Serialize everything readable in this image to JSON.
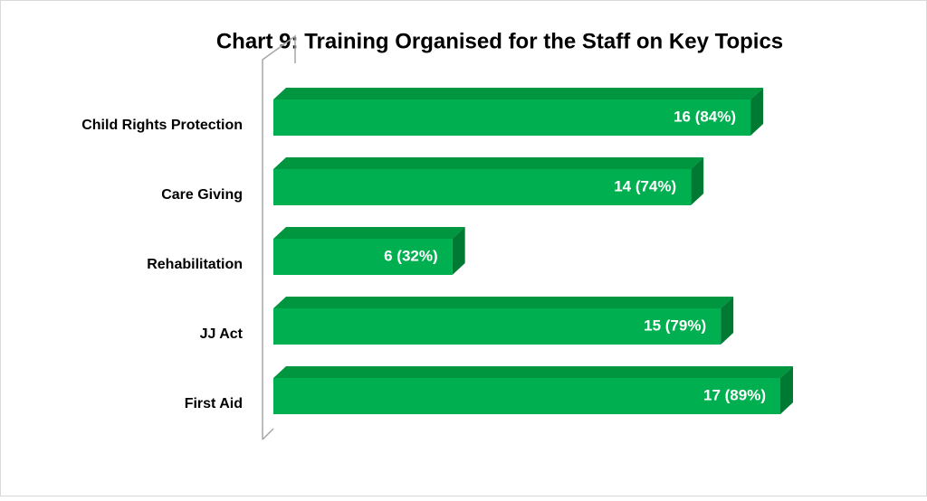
{
  "chart_data": {
    "type": "bar",
    "orientation": "horizontal",
    "title": "Chart 9: Training Organised for the Staff on Key Topics",
    "categories": [
      "Child Rights Protection",
      "Care Giving",
      "Rehabilitation",
      "JJ Act",
      "First Aid"
    ],
    "values": [
      16,
      14,
      6,
      15,
      17
    ],
    "value_labels": [
      "16 (84%)",
      "14 (74%)",
      "6 (32%)",
      "15 (79%)",
      "17 (89%)"
    ],
    "color": "#00b050",
    "xlim": [
      0,
      17
    ]
  }
}
